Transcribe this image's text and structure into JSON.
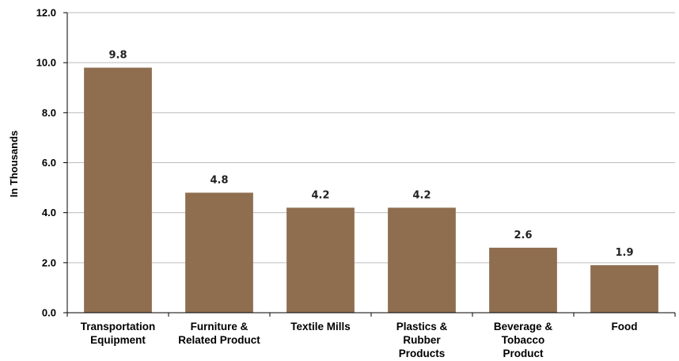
{
  "chart_data": {
    "type": "bar",
    "title": "",
    "xlabel": "",
    "ylabel": "In Thousands",
    "categories": [
      [
        "Transportation",
        "Equipment"
      ],
      [
        "Furniture &",
        "Related Product"
      ],
      [
        "Textile Mills"
      ],
      [
        "Plastics &",
        "Rubber",
        "Products"
      ],
      [
        "Beverage &",
        "Tobacco",
        "Product"
      ],
      [
        "Food"
      ]
    ],
    "values": [
      9.8,
      4.8,
      4.2,
      4.2,
      2.6,
      1.9
    ],
    "data_labels": [
      "9.8",
      "4.8",
      "4.2",
      "4.2",
      "2.6",
      "1.9"
    ],
    "ylim": [
      0,
      12
    ],
    "yticks": [
      "0.0",
      "2.0",
      "4.0",
      "6.0",
      "8.0",
      "10.0",
      "12.0"
    ],
    "grid": true,
    "legend": "none",
    "colors": {
      "bar": "#8f6e4f",
      "grid": "#bdbdbd",
      "axis": "#000000"
    }
  }
}
